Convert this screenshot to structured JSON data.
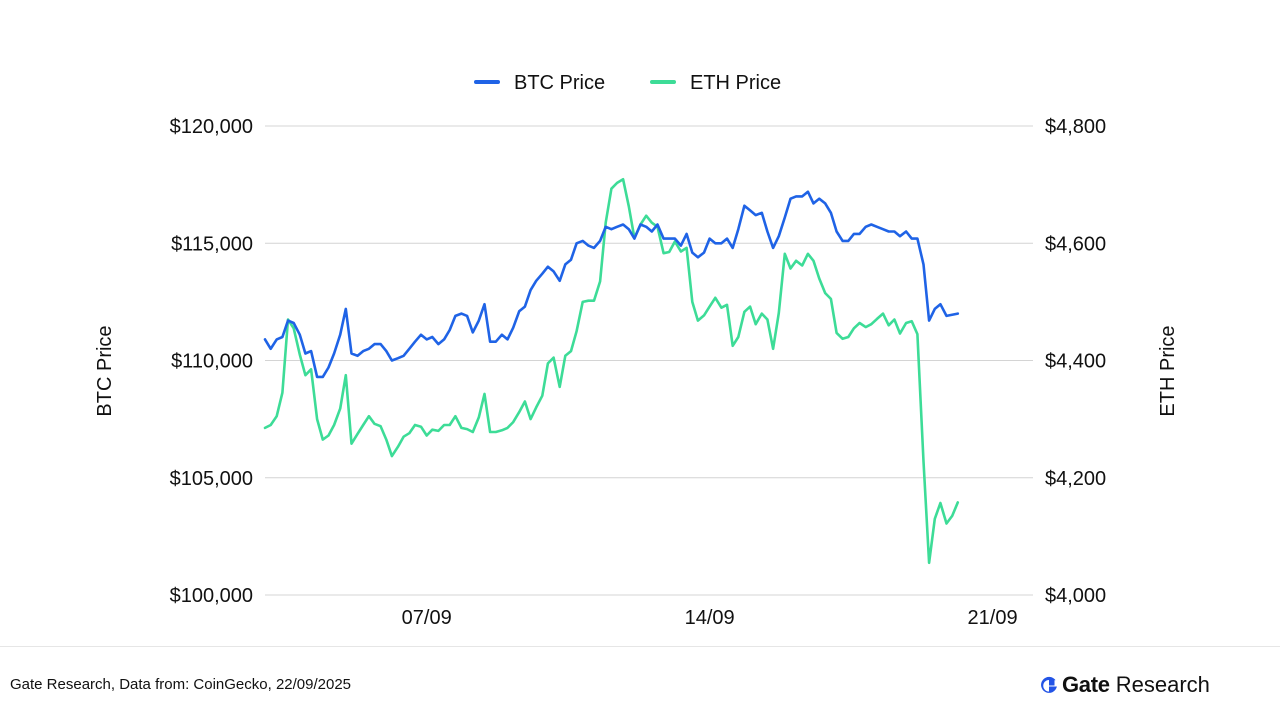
{
  "colors": {
    "btc": "#1f63e6",
    "eth": "#3ddc97",
    "grid": "#d4d4d4",
    "brand": "#2354e6"
  },
  "footer": {
    "source": "Gate Research, Data from: CoinGecko, 22/09/2025",
    "brand_name": "Gate",
    "brand_sub": "Research",
    "logo_icon": "gate-logo-icon"
  },
  "chart_data": {
    "type": "line",
    "legend": [
      "BTC Price",
      "ETH Price"
    ],
    "legend_position": "top-center",
    "ylabel_left": "BTC Price",
    "ylabel_right": "ETH Price",
    "grid": true,
    "x_range": [
      0,
      19
    ],
    "x_ticks": [
      {
        "label": "07/09",
        "x": 4
      },
      {
        "label": "14/09",
        "x": 11
      },
      {
        "label": "21/09",
        "x": 18
      }
    ],
    "y_left": {
      "range": [
        100000,
        120000
      ],
      "ticks": [
        {
          "value": 100000,
          "label": "$100,000"
        },
        {
          "value": 105000,
          "label": "$105,000"
        },
        {
          "value": 110000,
          "label": "$110,000"
        },
        {
          "value": 115000,
          "label": "$115,000"
        },
        {
          "value": 120000,
          "label": "$120,000"
        }
      ]
    },
    "y_right": {
      "range": [
        4000,
        4800
      ],
      "ticks": [
        {
          "value": 4000,
          "label": "$4,000"
        },
        {
          "value": 4200,
          "label": "$4,200"
        },
        {
          "value": 4400,
          "label": "$4,400"
        },
        {
          "value": 4600,
          "label": "$4,600"
        },
        {
          "value": 4800,
          "label": "$4,800"
        }
      ]
    },
    "series": [
      {
        "name": "BTC Price",
        "axis": "left",
        "points": [
          [
            0.0,
            110900
          ],
          [
            0.14,
            110500
          ],
          [
            0.29,
            110900
          ],
          [
            0.43,
            111000
          ],
          [
            0.57,
            111700
          ],
          [
            0.71,
            111600
          ],
          [
            0.86,
            111100
          ],
          [
            1.0,
            110300
          ],
          [
            1.14,
            110400
          ],
          [
            1.29,
            109300
          ],
          [
            1.43,
            109300
          ],
          [
            1.57,
            109700
          ],
          [
            1.71,
            110300
          ],
          [
            1.86,
            111100
          ],
          [
            2.0,
            112200
          ],
          [
            2.14,
            110300
          ],
          [
            2.29,
            110200
          ],
          [
            2.43,
            110400
          ],
          [
            2.57,
            110500
          ],
          [
            2.71,
            110700
          ],
          [
            2.86,
            110700
          ],
          [
            3.0,
            110400
          ],
          [
            3.14,
            110000
          ],
          [
            3.29,
            110100
          ],
          [
            3.43,
            110200
          ],
          [
            3.57,
            110500
          ],
          [
            3.71,
            110800
          ],
          [
            3.86,
            111100
          ],
          [
            4.0,
            110900
          ],
          [
            4.14,
            111000
          ],
          [
            4.29,
            110700
          ],
          [
            4.43,
            110900
          ],
          [
            4.57,
            111300
          ],
          [
            4.71,
            111900
          ],
          [
            4.86,
            112000
          ],
          [
            5.0,
            111900
          ],
          [
            5.14,
            111200
          ],
          [
            5.29,
            111700
          ],
          [
            5.43,
            112400
          ],
          [
            5.57,
            110800
          ],
          [
            5.71,
            110800
          ],
          [
            5.86,
            111100
          ],
          [
            6.0,
            110900
          ],
          [
            6.14,
            111400
          ],
          [
            6.29,
            112100
          ],
          [
            6.43,
            112300
          ],
          [
            6.57,
            113000
          ],
          [
            6.71,
            113400
          ],
          [
            6.86,
            113700
          ],
          [
            7.0,
            114000
          ],
          [
            7.14,
            113800
          ],
          [
            7.29,
            113400
          ],
          [
            7.43,
            114100
          ],
          [
            7.57,
            114300
          ],
          [
            7.71,
            115000
          ],
          [
            7.86,
            115100
          ],
          [
            8.0,
            114900
          ],
          [
            8.14,
            114800
          ],
          [
            8.29,
            115100
          ],
          [
            8.43,
            115700
          ],
          [
            8.57,
            115600
          ],
          [
            8.71,
            115700
          ],
          [
            8.86,
            115800
          ],
          [
            9.0,
            115600
          ],
          [
            9.14,
            115200
          ],
          [
            9.29,
            115800
          ],
          [
            9.43,
            115700
          ],
          [
            9.57,
            115500
          ],
          [
            9.71,
            115800
          ],
          [
            9.86,
            115200
          ],
          [
            10.0,
            115200
          ],
          [
            10.14,
            115200
          ],
          [
            10.29,
            114900
          ],
          [
            10.43,
            115400
          ],
          [
            10.57,
            114600
          ],
          [
            10.71,
            114400
          ],
          [
            10.86,
            114600
          ],
          [
            11.0,
            115200
          ],
          [
            11.14,
            115000
          ],
          [
            11.29,
            115000
          ],
          [
            11.43,
            115200
          ],
          [
            11.57,
            114800
          ],
          [
            11.71,
            115600
          ],
          [
            11.86,
            116600
          ],
          [
            12.0,
            116400
          ],
          [
            12.14,
            116200
          ],
          [
            12.29,
            116300
          ],
          [
            12.43,
            115500
          ],
          [
            12.57,
            114800
          ],
          [
            12.71,
            115300
          ],
          [
            12.86,
            116100
          ],
          [
            13.0,
            116900
          ],
          [
            13.14,
            117000
          ],
          [
            13.29,
            117000
          ],
          [
            13.43,
            117200
          ],
          [
            13.57,
            116700
          ],
          [
            13.71,
            116900
          ],
          [
            13.86,
            116700
          ],
          [
            14.0,
            116300
          ],
          [
            14.14,
            115500
          ],
          [
            14.29,
            115100
          ],
          [
            14.43,
            115100
          ],
          [
            14.57,
            115400
          ],
          [
            14.71,
            115400
          ],
          [
            14.86,
            115700
          ],
          [
            15.0,
            115800
          ],
          [
            15.14,
            115700
          ],
          [
            15.29,
            115600
          ],
          [
            15.43,
            115500
          ],
          [
            15.57,
            115500
          ],
          [
            15.71,
            115300
          ],
          [
            15.86,
            115500
          ],
          [
            16.0,
            115200
          ],
          [
            16.14,
            115200
          ],
          [
            16.29,
            114100
          ],
          [
            16.43,
            111700
          ],
          [
            16.57,
            112200
          ],
          [
            16.71,
            112400
          ],
          [
            16.86,
            111900
          ],
          [
            17.14,
            112000
          ]
        ]
      },
      {
        "name": "ETH Price",
        "axis": "right",
        "points": [
          [
            0.0,
            4285
          ],
          [
            0.14,
            4290
          ],
          [
            0.29,
            4305
          ],
          [
            0.43,
            4345
          ],
          [
            0.57,
            4470
          ],
          [
            0.71,
            4455
          ],
          [
            0.86,
            4410
          ],
          [
            1.0,
            4375
          ],
          [
            1.14,
            4385
          ],
          [
            1.29,
            4300
          ],
          [
            1.43,
            4265
          ],
          [
            1.57,
            4272
          ],
          [
            1.71,
            4290
          ],
          [
            1.86,
            4318
          ],
          [
            2.0,
            4375
          ],
          [
            2.14,
            4258
          ],
          [
            2.29,
            4275
          ],
          [
            2.43,
            4290
          ],
          [
            2.57,
            4305
          ],
          [
            2.71,
            4292
          ],
          [
            2.86,
            4288
          ],
          [
            3.0,
            4265
          ],
          [
            3.14,
            4237
          ],
          [
            3.29,
            4253
          ],
          [
            3.43,
            4270
          ],
          [
            3.57,
            4276
          ],
          [
            3.71,
            4290
          ],
          [
            3.86,
            4287
          ],
          [
            4.0,
            4272
          ],
          [
            4.14,
            4282
          ],
          [
            4.29,
            4280
          ],
          [
            4.43,
            4290
          ],
          [
            4.57,
            4290
          ],
          [
            4.71,
            4305
          ],
          [
            4.86,
            4285
          ],
          [
            5.0,
            4283
          ],
          [
            5.14,
            4278
          ],
          [
            5.29,
            4303
          ],
          [
            5.43,
            4343
          ],
          [
            5.57,
            4278
          ],
          [
            5.71,
            4278
          ],
          [
            5.86,
            4281
          ],
          [
            6.0,
            4285
          ],
          [
            6.14,
            4295
          ],
          [
            6.29,
            4312
          ],
          [
            6.43,
            4330
          ],
          [
            6.57,
            4300
          ],
          [
            6.71,
            4320
          ],
          [
            6.86,
            4340
          ],
          [
            7.0,
            4395
          ],
          [
            7.14,
            4405
          ],
          [
            7.29,
            4355
          ],
          [
            7.43,
            4408
          ],
          [
            7.57,
            4416
          ],
          [
            7.71,
            4450
          ],
          [
            7.86,
            4500
          ],
          [
            8.0,
            4502
          ],
          [
            8.14,
            4502
          ],
          [
            8.29,
            4535
          ],
          [
            8.43,
            4635
          ],
          [
            8.57,
            4693
          ],
          [
            8.71,
            4703
          ],
          [
            8.86,
            4709
          ],
          [
            9.0,
            4663
          ],
          [
            9.14,
            4609
          ],
          [
            9.29,
            4632
          ],
          [
            9.43,
            4647
          ],
          [
            9.57,
            4635
          ],
          [
            9.71,
            4628
          ],
          [
            9.86,
            4583
          ],
          [
            10.0,
            4585
          ],
          [
            10.14,
            4603
          ],
          [
            10.29,
            4586
          ],
          [
            10.43,
            4592
          ],
          [
            10.57,
            4500
          ],
          [
            10.71,
            4468
          ],
          [
            10.86,
            4477
          ],
          [
            11.0,
            4492
          ],
          [
            11.14,
            4507
          ],
          [
            11.29,
            4490
          ],
          [
            11.43,
            4495
          ],
          [
            11.57,
            4425
          ],
          [
            11.71,
            4440
          ],
          [
            11.86,
            4483
          ],
          [
            12.0,
            4492
          ],
          [
            12.14,
            4462
          ],
          [
            12.29,
            4480
          ],
          [
            12.43,
            4470
          ],
          [
            12.57,
            4420
          ],
          [
            12.71,
            4481
          ],
          [
            12.86,
            4582
          ],
          [
            13.0,
            4557
          ],
          [
            13.14,
            4570
          ],
          [
            13.29,
            4562
          ],
          [
            13.43,
            4582
          ],
          [
            13.57,
            4570
          ],
          [
            13.71,
            4540
          ],
          [
            13.86,
            4515
          ],
          [
            14.0,
            4505
          ],
          [
            14.14,
            4447
          ],
          [
            14.29,
            4437
          ],
          [
            14.43,
            4440
          ],
          [
            14.57,
            4455
          ],
          [
            14.71,
            4464
          ],
          [
            14.86,
            4457
          ],
          [
            15.0,
            4462
          ],
          [
            15.14,
            4471
          ],
          [
            15.29,
            4480
          ],
          [
            15.43,
            4460
          ],
          [
            15.57,
            4470
          ],
          [
            15.71,
            4446
          ],
          [
            15.86,
            4464
          ],
          [
            16.0,
            4467
          ],
          [
            16.14,
            4445
          ],
          [
            16.29,
            4228
          ],
          [
            16.43,
            4055
          ],
          [
            16.57,
            4130
          ],
          [
            16.71,
            4157
          ],
          [
            16.86,
            4122
          ],
          [
            17.0,
            4135
          ],
          [
            17.14,
            4158
          ]
        ]
      }
    ]
  }
}
